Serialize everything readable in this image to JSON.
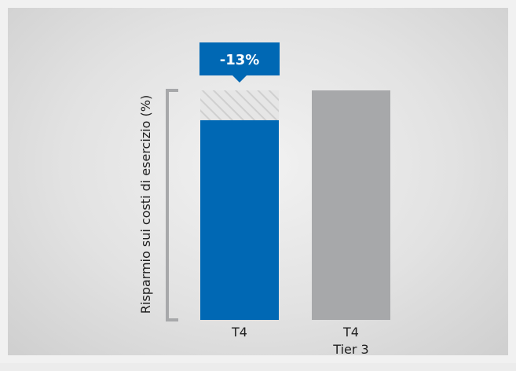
{
  "chart_data": {
    "type": "bar",
    "ylabel": "Risparmio sui costi di esercizio (%)",
    "ylim": [
      0,
      100
    ],
    "grid": false,
    "legend": "none",
    "categories": [
      {
        "label": "T4",
        "sublabel": ""
      },
      {
        "label": "T4",
        "sublabel": "Tier 3"
      }
    ],
    "values": [
      87,
      100
    ],
    "reference_value": 100,
    "colors": [
      "#0068b4",
      "#a7a8aa"
    ],
    "hatch_color": "#d3d3d3",
    "callout": {
      "text": "-13%",
      "category_index": 0,
      "color": "#0068b4"
    }
  }
}
